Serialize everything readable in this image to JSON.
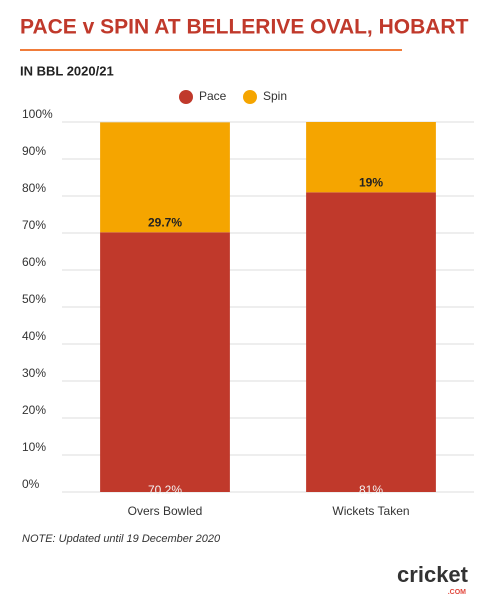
{
  "chart_data": {
    "type": "stacked_bar",
    "title": "PACE v SPIN AT BELLERIVE OVAL, HOBART",
    "subtitle": "IN BBL 2020/21",
    "note": "NOTE: Updated until 19 December 2020",
    "logo": "cricket",
    "logo_sub": ".COM",
    "categories": [
      "Overs Bowled",
      "Wickets Taken"
    ],
    "series": [
      {
        "name": "Pace",
        "color": "#c0392b",
        "values": [
          70.2,
          81
        ],
        "value_labels": [
          "70.2%",
          "81%"
        ]
      },
      {
        "name": "Spin",
        "color": "#f5a500",
        "values": [
          29.7,
          19
        ],
        "value_labels": [
          "29.7%",
          "19%"
        ]
      }
    ],
    "ylim": [
      0,
      100
    ],
    "yticks": [
      {
        "value": 0,
        "label": "0%"
      },
      {
        "value": 10,
        "label": "10%"
      },
      {
        "value": 20,
        "label": "20%"
      },
      {
        "value": 30,
        "label": "30%"
      },
      {
        "value": 40,
        "label": "40%"
      },
      {
        "value": 50,
        "label": "50%"
      },
      {
        "value": 60,
        "label": "60%"
      },
      {
        "value": 70,
        "label": "70%"
      },
      {
        "value": 80,
        "label": "80%"
      },
      {
        "value": 90,
        "label": "90%"
      },
      {
        "value": 100,
        "label": "100%"
      }
    ],
    "grid": true,
    "legend": "top"
  }
}
